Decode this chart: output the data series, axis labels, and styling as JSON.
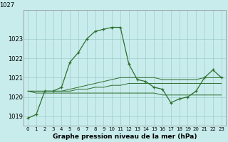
{
  "title": "Graphe pression niveau de la mer (hPa)",
  "background_color": "#c8ecec",
  "grid_color": "#a0cccc",
  "line_color": "#2d6e2d",
  "ylim": [
    1018.5,
    1024.5
  ],
  "yticks": [
    1019,
    1020,
    1021,
    1022,
    1023
  ],
  "ytick_top": 1027,
  "series1": [
    1018.9,
    1019.1,
    1020.3,
    1020.3,
    1020.5,
    1021.8,
    1022.3,
    1023.0,
    1023.4,
    1023.5,
    1023.6,
    1023.6,
    1021.7,
    1020.9,
    1020.8,
    1020.5,
    1020.4,
    1019.7,
    1019.9,
    1020.0,
    1020.3,
    1021.0,
    1021.4,
    1021.0
  ],
  "series2": [
    1020.3,
    1020.3,
    1020.3,
    1020.3,
    1020.3,
    1020.3,
    1020.4,
    1020.4,
    1020.5,
    1020.5,
    1020.6,
    1020.6,
    1020.7,
    1020.7,
    1020.7,
    1020.7,
    1020.7,
    1020.7,
    1020.7,
    1020.7,
    1020.7,
    1020.7,
    1020.7,
    1020.7
  ],
  "series3": [
    1020.3,
    1020.2,
    1020.2,
    1020.2,
    1020.2,
    1020.2,
    1020.2,
    1020.2,
    1020.2,
    1020.2,
    1020.2,
    1020.2,
    1020.2,
    1020.2,
    1020.2,
    1020.2,
    1020.1,
    1020.1,
    1020.1,
    1020.1,
    1020.1,
    1020.1,
    1020.1,
    1020.1
  ],
  "series4": [
    1020.3,
    1020.3,
    1020.3,
    1020.3,
    1020.3,
    1020.4,
    1020.5,
    1020.6,
    1020.7,
    1020.8,
    1020.9,
    1021.0,
    1021.0,
    1021.0,
    1021.0,
    1021.0,
    1020.9,
    1020.9,
    1020.9,
    1020.9,
    1020.9,
    1021.0,
    1021.0,
    1021.0
  ],
  "x_labels": [
    "0",
    "1",
    "2",
    "3",
    "4",
    "5",
    "6",
    "7",
    "8",
    "9",
    "10",
    "11",
    "12",
    "13",
    "14",
    "15",
    "16",
    "17",
    "18",
    "19",
    "20",
    "21",
    "22",
    "23"
  ],
  "xlabel_fontsize": 6.0,
  "ytick_fontsize": 6.0,
  "xtick_fontsize": 5.0,
  "title_fontsize": 6.5,
  "figsize": [
    3.2,
    2.0
  ],
  "dpi": 100
}
